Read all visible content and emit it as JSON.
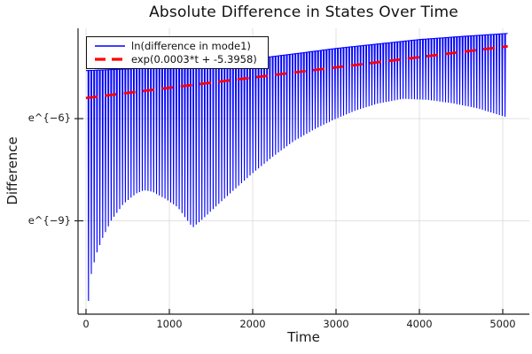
{
  "chart_data": {
    "type": "line",
    "title": "Absolute Difference in States Over Time",
    "xlabel": "Time",
    "ylabel": "Difference",
    "x_ticks": [
      0,
      1000,
      2000,
      3000,
      4000,
      5000
    ],
    "x_tick_labels": [
      "0",
      "1000",
      "2000",
      "3000",
      "4000",
      "5000"
    ],
    "y_ticks": [
      {
        "label": "e^{−6}",
        "ln": -6
      },
      {
        "label": "e^{−9}",
        "ln": -9
      }
    ],
    "y_scale": "natural-log",
    "xlim": [
      0,
      5000
    ],
    "ylim_ln": [
      -11.74,
      -3.35
    ],
    "grid": true,
    "legend_position": "top-left",
    "series": [
      {
        "name": "ln(difference in mode1)",
        "color": "#0000ff",
        "style": "solid",
        "kind": "oscillatory-magnitude-on-log-scale",
        "oscillation_period_t": 34,
        "first_zero_crossing_t": 30,
        "spike_half_width_t": 5,
        "t_end": 5060,
        "upper_envelope": {
          "t": [
            0,
            500,
            1000,
            1500,
            2000,
            2500,
            3000,
            3500,
            4000,
            4500,
            5060
          ],
          "ln": [
            -4.59,
            -4.54,
            -4.49,
            -4.38,
            -4.25,
            -4.1,
            -3.94,
            -3.81,
            -3.68,
            -3.59,
            -3.5
          ]
        },
        "lower_envelope": {
          "t": [
            20,
            60,
            120,
            200,
            300,
            450,
            600,
            700,
            800,
            950,
            1100,
            1280,
            1400,
            1550,
            1750,
            2000,
            2250,
            2500,
            2750,
            3000,
            3250,
            3500,
            3800,
            4100,
            4400,
            4700,
            5060
          ],
          "ln": [
            -11.6,
            -10.6,
            -10.0,
            -9.5,
            -9.0,
            -8.5,
            -8.2,
            -8.1,
            -8.15,
            -8.35,
            -8.6,
            -9.2,
            -8.95,
            -8.6,
            -8.15,
            -7.6,
            -7.1,
            -6.65,
            -6.3,
            -6.0,
            -5.75,
            -5.56,
            -5.42,
            -5.45,
            -5.55,
            -5.7,
            -5.97
          ]
        }
      },
      {
        "name": "exp(0.0003*t + -5.3958)",
        "color": "#ff0000",
        "style": "dashed",
        "model": {
          "type": "exp",
          "rate": 0.0003,
          "intercept": -5.3958,
          "t_range": [
            0,
            5060
          ]
        }
      }
    ],
    "colors": {
      "grid": "#d7d7d7",
      "axis": "#1f1f1f",
      "tick_text": "#1a1a1a",
      "background": "#ffffff"
    }
  }
}
